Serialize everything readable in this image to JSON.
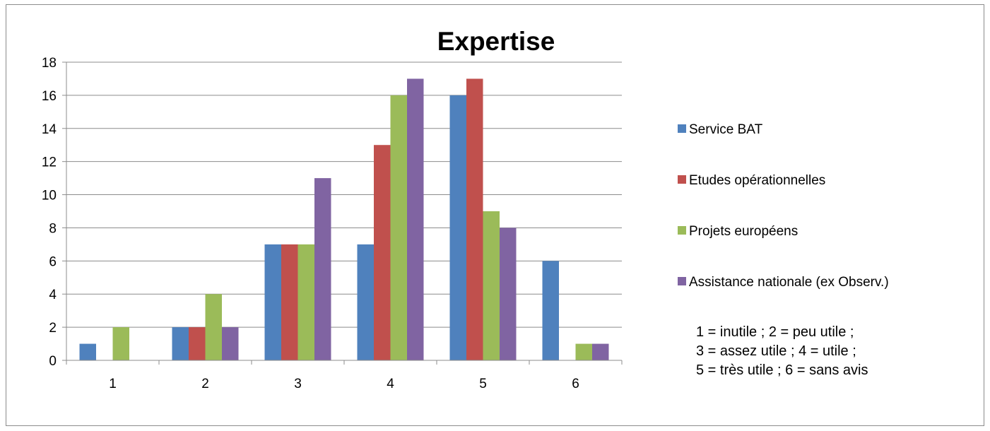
{
  "chart_data": {
    "type": "bar",
    "title": "Expertise",
    "categories": [
      "1",
      "2",
      "3",
      "4",
      "5",
      "6"
    ],
    "series": [
      {
        "name": "Service BAT",
        "color": "#4f81bd",
        "values": [
          1,
          2,
          7,
          7,
          16,
          6
        ]
      },
      {
        "name": "Etudes opérationnelles",
        "color": "#c0504d",
        "values": [
          0,
          2,
          7,
          13,
          17,
          0
        ]
      },
      {
        "name": "Projets européens",
        "color": "#9bbb59",
        "values": [
          2,
          4,
          7,
          16,
          9,
          1
        ]
      },
      {
        "name": "Assistance nationale (ex Observ.)",
        "color": "#8064a2",
        "values": [
          0,
          2,
          11,
          17,
          8,
          1
        ]
      }
    ],
    "ylim": [
      0,
      18
    ],
    "yticks": [
      0,
      2,
      4,
      6,
      8,
      10,
      12,
      14,
      16,
      18
    ],
    "grid": true,
    "legend_position": "right",
    "xlabel": "",
    "ylabel": ""
  },
  "note": {
    "lines": [
      "1 = inutile ; 2 = peu utile ;",
      "3 = assez utile ; 4 = utile ;",
      "5 = très utile ; 6 = sans avis"
    ]
  }
}
